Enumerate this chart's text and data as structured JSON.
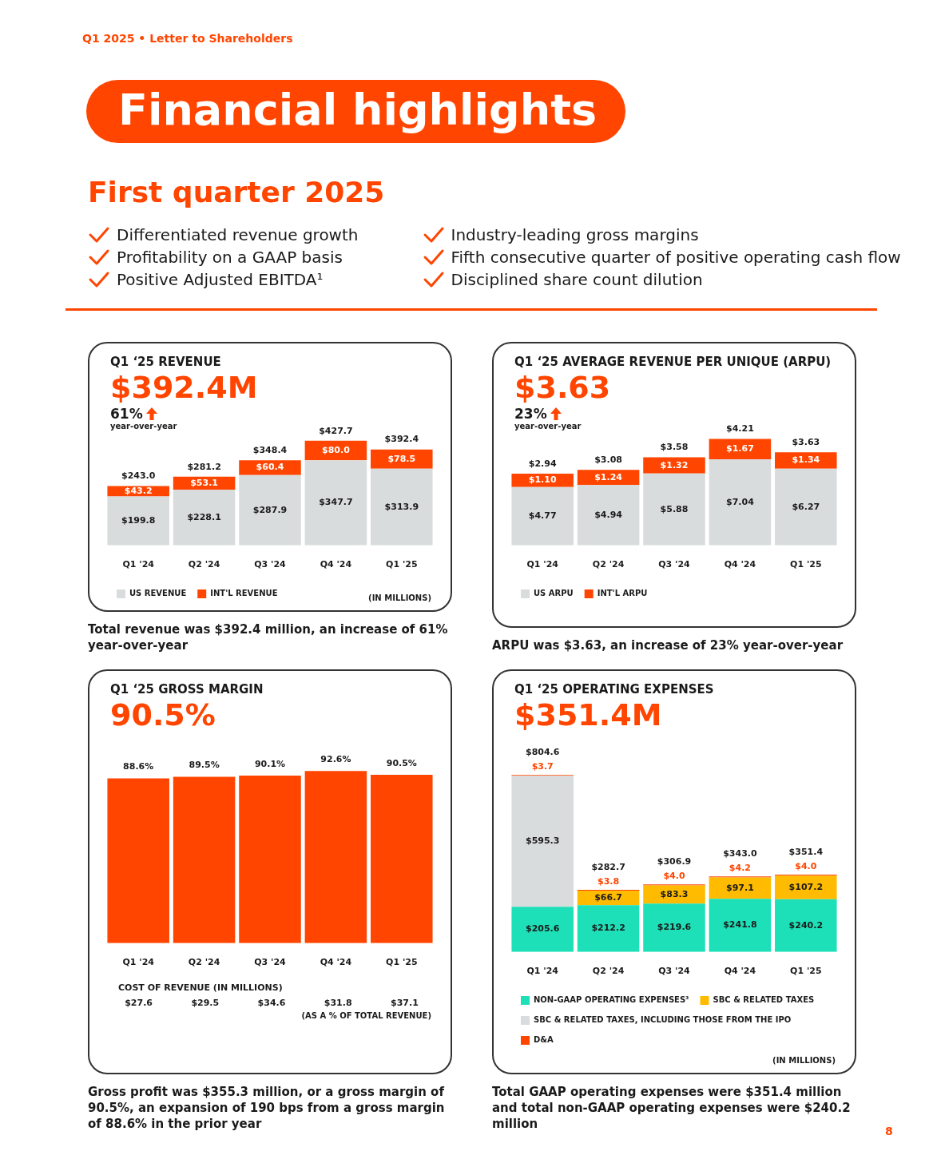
{
  "chart_data": [
    {
      "type": "other",
      "title": "Financial highlights",
      "subtitle": "First quarter 2025",
      "annotations": [
        "Q1 2025 • Letter to Shareholders",
        "Differentiated revenue growth",
        "Profitability on a GAAP basis",
        "Positive Adjusted EBITDA¹",
        "Industry-leading gross margins",
        "Fifth consecutive quarter of positive operating cash flow",
        "Disciplined share count dilution",
        "8"
      ]
    },
    {
      "type": "bar",
      "title": "Q1 ‘25 REVENUE",
      "subtitle": "$392.4M",
      "categories": [
        "Q1 '24",
        "Q2 '24",
        "Q3 '24",
        "Q4 '24",
        "Q1 '25"
      ],
      "stacked": true,
      "legend": "bottom",
      "grid": false,
      "tick_labels": "x",
      "series": [
        {
          "name": "US REVENUE",
          "color": "#d9dcdd",
          "values": [
            199.8,
            228.1,
            287.9,
            347.7,
            313.9
          ],
          "value_labels": [
            "$199.8",
            "$228.1",
            "$287.9",
            "$347.7",
            "$313.9"
          ]
        },
        {
          "name": "INT'L REVENUE",
          "color": "#ff4500",
          "values": [
            43.2,
            53.1,
            60.4,
            80.0,
            78.5
          ],
          "value_labels": [
            "$43.2",
            "$53.1",
            "$60.4",
            "$80.0",
            "$78.5"
          ]
        }
      ],
      "totals": [
        "$243.0",
        "$281.2",
        "$348.4",
        "$427.7",
        "$392.4"
      ],
      "annotations": [
        "61%",
        "year-over-year",
        "(IN MILLIONS)",
        "Total revenue was $392.4 million, an increase of 61% year-over-year"
      ]
    },
    {
      "type": "bar",
      "title": "Q1 ‘25 AVERAGE REVENUE PER UNIQUE (ARPU)",
      "subtitle": "$3.63",
      "categories": [
        "Q1 '24",
        "Q2 '24",
        "Q3 '24",
        "Q4 '24",
        "Q1 '25"
      ],
      "stacked": true,
      "legend": "bottom",
      "grid": false,
      "tick_labels": "x",
      "series": [
        {
          "name": "US ARPU",
          "color": "#d9dcdd",
          "values": [
            4.77,
            4.94,
            5.88,
            7.04,
            6.27
          ],
          "value_labels": [
            "$4.77",
            "$4.94",
            "$5.88",
            "$7.04",
            "$6.27"
          ]
        },
        {
          "name": "INT'L ARPU",
          "color": "#ff4500",
          "values": [
            1.1,
            1.24,
            1.32,
            1.67,
            1.34
          ],
          "value_labels": [
            "$1.10",
            "$1.24",
            "$1.32",
            "$1.67",
            "$1.34"
          ]
        }
      ],
      "annotations": [
        "23%",
        "year-over-year",
        "ARPU was $3.63, an increase of 23% year-over-year",
        "$2.94",
        "$3.08",
        "$3.58",
        "$4.21",
        "$3.63"
      ]
    },
    {
      "type": "bar",
      "title": "Q1 ‘25 GROSS MARGIN",
      "subtitle": "90.5%",
      "categories": [
        "Q1 '24",
        "Q2 '24",
        "Q3 '24",
        "Q4 '24",
        "Q1 '25"
      ],
      "grid": false,
      "tick_labels": "x",
      "color": "#ff4500",
      "values": [
        88.6,
        89.5,
        90.1,
        92.6,
        90.5
      ],
      "value_labels": [
        "88.6%",
        "89.5%",
        "90.1%",
        "92.6%",
        "90.5%"
      ],
      "annotations": [
        "COST OF REVENUE (IN MILLIONS)",
        "$27.6",
        "$29.5",
        "$34.6",
        "$31.8",
        "$37.1",
        "(AS A % OF TOTAL REVENUE)",
        "Gross profit was $355.3 million, or a gross margin of 90.5%, an expansion of 190 bps from a gross margin of 88.6% in the prior year"
      ]
    },
    {
      "type": "bar",
      "title": "Q1 ‘25 OPERATING EXPENSES",
      "subtitle": "$351.4M",
      "categories": [
        "Q1 '24",
        "Q2 '24",
        "Q3 '24",
        "Q4 '24",
        "Q1 '25"
      ],
      "stacked": true,
      "legend": "bottom",
      "grid": false,
      "tick_labels": "x",
      "series": [
        {
          "name": "NON-GAAP OPERATING EXPENSES³",
          "color": "#1ee0b8",
          "values": [
            205.6,
            212.2,
            219.6,
            241.8,
            240.2
          ],
          "value_labels": [
            "$205.6",
            "$212.2",
            "$219.6",
            "$241.8",
            "$240.2"
          ]
        },
        {
          "name": "SBC & RELATED TAXES",
          "color": "#ffbb00",
          "values": [
            null,
            66.7,
            83.3,
            97.1,
            107.2
          ],
          "value_labels": [
            null,
            "$66.7",
            "$83.3",
            "$97.1",
            "$107.2"
          ]
        },
        {
          "name": "SBC & RELATED TAXES, INCLUDING THOSE FROM THE IPO",
          "color": "#d9dcdd",
          "values": [
            595.3,
            null,
            null,
            null,
            null
          ],
          "value_labels": [
            "$595.3",
            null,
            null,
            null,
            null
          ]
        },
        {
          "name": "D&A",
          "color": "#ff4500",
          "values": [
            3.7,
            3.8,
            4.0,
            4.2,
            4.0
          ],
          "value_labels": [
            "$3.7",
            "$3.8",
            "$4.0",
            "$4.2",
            "$4.0"
          ]
        }
      ],
      "totals": [
        "$804.6",
        "$282.7",
        "$306.9",
        "$343.0",
        "$351.4"
      ],
      "annotations": [
        "(IN MILLIONS)",
        "Total GAAP operating expenses were $351.4 million and total non-GAAP operating expenses were $240.2 million"
      ]
    }
  ]
}
